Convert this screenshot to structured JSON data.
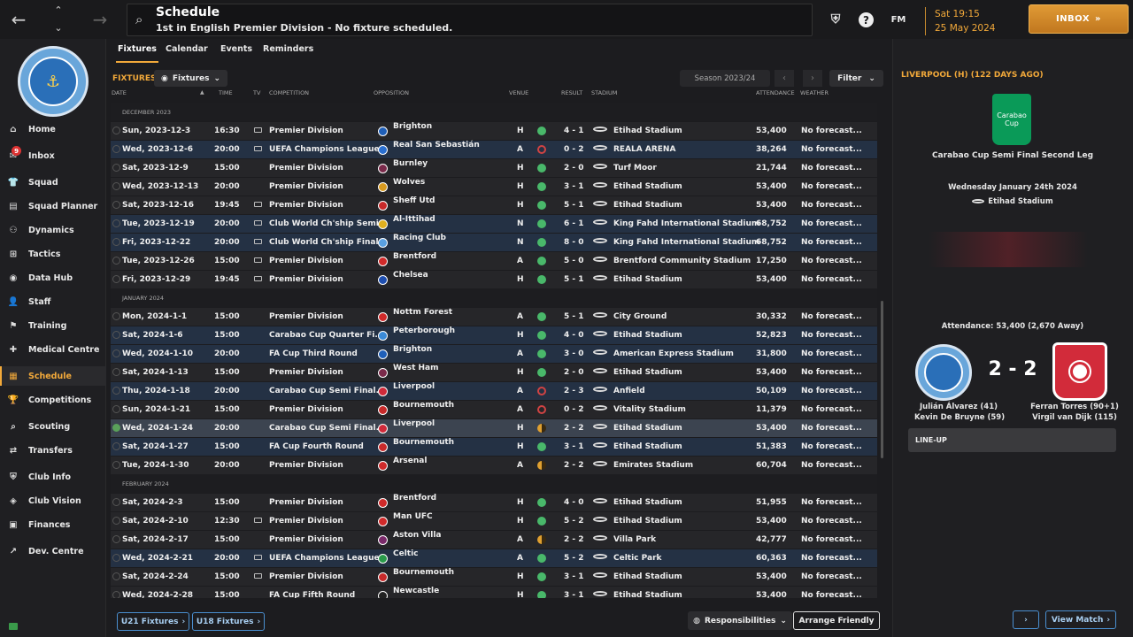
{
  "topbar": {
    "title": "Schedule",
    "subtitle": "1st in English Premier Division - No fixture scheduled.",
    "fm_label": "FM",
    "time": "Sat 19:15",
    "date": "25 May 2024",
    "inbox_label": "INBOX"
  },
  "sidebar": {
    "badge_count": "9",
    "items": [
      "Home",
      "Inbox",
      "Squad",
      "Squad Planner",
      "Dynamics",
      "Tactics",
      "Data Hub",
      "Staff",
      "Training",
      "Medical Centre",
      "Schedule",
      "Competitions",
      "Scouting",
      "Transfers",
      "Club Info",
      "Club Vision",
      "Finances",
      "Dev. Centre"
    ]
  },
  "tabs": [
    "Fixtures",
    "Calendar",
    "Events",
    "Reminders"
  ],
  "fixtures": {
    "label": "FIXTURES",
    "dropdown": "Fixtures",
    "season": "Season 2023/24",
    "filter": "Filter"
  },
  "columns": [
    "DATE",
    "TIME",
    "TV",
    "COMPETITION",
    "OPPOSITION",
    "VENUE",
    "RESULT",
    "STADIUM",
    "ATTENDANCE",
    "WEATHER"
  ],
  "sections": [
    "DECEMBER 2023",
    "JANUARY 2024",
    "FEBRUARY 2024"
  ],
  "rows": [
    {
      "date": "Sun, 2023-12-3",
      "time": "16:30",
      "tv": true,
      "comp": "Premier Division",
      "opp": "Brighton",
      "venue": "H",
      "res": "w",
      "score": "4 - 1",
      "stadium": "Etihad Stadium",
      "att": "53,400",
      "weather": "No forecast...",
      "alt": false,
      "color": "#1f5fb8"
    },
    {
      "date": "Wed, 2023-12-6",
      "time": "20:00",
      "tv": true,
      "comp": "UEFA Champions League",
      "opp": "Real San Sebastián",
      "venue": "A",
      "res": "l",
      "score": "0 - 2",
      "stadium": "REALA ARENA",
      "att": "38,264",
      "weather": "No forecast...",
      "alt": true,
      "color": "#2a6fd0"
    },
    {
      "date": "Sat, 2023-12-9",
      "time": "15:00",
      "tv": false,
      "comp": "Premier Division",
      "opp": "Burnley",
      "venue": "H",
      "res": "w",
      "score": "2 - 0",
      "stadium": "Turf Moor",
      "att": "21,744",
      "weather": "No forecast...",
      "alt": false,
      "color": "#7a2a4a"
    },
    {
      "date": "Wed, 2023-12-13",
      "time": "20:00",
      "tv": false,
      "comp": "Premier Division",
      "opp": "Wolves",
      "venue": "H",
      "res": "w",
      "score": "3 - 1",
      "stadium": "Etihad Stadium",
      "att": "53,400",
      "weather": "No forecast...",
      "alt": false,
      "color": "#d89a20"
    },
    {
      "date": "Sat, 2023-12-16",
      "time": "19:45",
      "tv": true,
      "comp": "Premier Division",
      "opp": "Sheff Utd",
      "venue": "H",
      "res": "w",
      "score": "5 - 1",
      "stadium": "Etihad Stadium",
      "att": "53,400",
      "weather": "No forecast...",
      "alt": false,
      "color": "#c82a2a"
    },
    {
      "date": "Tue, 2023-12-19",
      "time": "20:00",
      "tv": true,
      "comp": "Club World Ch'ship Semi",
      "opp": "Al-Ittihad",
      "venue": "N",
      "res": "w",
      "score": "6 - 1",
      "stadium": "King Fahd International Stadium",
      "att": "68,752",
      "weather": "No forecast...",
      "alt": true,
      "color": "#e0b020"
    },
    {
      "date": "Fri, 2023-12-22",
      "time": "20:00",
      "tv": true,
      "comp": "Club World Ch'ship Final",
      "opp": "Racing Club",
      "venue": "N",
      "res": "w",
      "score": "8 - 0",
      "stadium": "King Fahd International Stadium",
      "att": "68,752",
      "weather": "No forecast...",
      "alt": true,
      "color": "#5aa0e0"
    },
    {
      "date": "Tue, 2023-12-26",
      "time": "15:00",
      "tv": true,
      "comp": "Premier Division",
      "opp": "Brentford",
      "venue": "A",
      "res": "w",
      "score": "5 - 0",
      "stadium": "Brentford Community Stadium",
      "att": "17,250",
      "weather": "No forecast...",
      "alt": false,
      "color": "#d02a2a"
    },
    {
      "date": "Fri, 2023-12-29",
      "time": "19:45",
      "tv": true,
      "comp": "Premier Division",
      "opp": "Chelsea",
      "venue": "H",
      "res": "w",
      "score": "5 - 1",
      "stadium": "Etihad Stadium",
      "att": "53,400",
      "weather": "No forecast...",
      "alt": false,
      "color": "#1f4fb0"
    },
    {
      "date": "Mon, 2024-1-1",
      "time": "15:00",
      "tv": false,
      "comp": "Premier Division",
      "opp": "Nottm Forest",
      "venue": "A",
      "res": "w",
      "score": "5 - 1",
      "stadium": "City Ground",
      "att": "30,332",
      "weather": "No forecast...",
      "alt": false,
      "color": "#d02a2a"
    },
    {
      "date": "Sat, 2024-1-6",
      "time": "15:00",
      "tv": false,
      "comp": "Carabao Cup Quarter Fi...",
      "opp": "Peterborough",
      "venue": "H",
      "res": "w",
      "score": "4 - 0",
      "stadium": "Etihad Stadium",
      "att": "52,823",
      "weather": "No forecast...",
      "alt": true,
      "color": "#3a8ad8"
    },
    {
      "date": "Wed, 2024-1-10",
      "time": "20:00",
      "tv": false,
      "comp": "FA Cup Third Round",
      "opp": "Brighton",
      "venue": "A",
      "res": "w",
      "score": "3 - 0",
      "stadium": "American Express Stadium",
      "att": "31,800",
      "weather": "No forecast...",
      "alt": true,
      "color": "#1f5fb8"
    },
    {
      "date": "Sat, 2024-1-13",
      "time": "15:00",
      "tv": false,
      "comp": "Premier Division",
      "opp": "West Ham",
      "venue": "H",
      "res": "w",
      "score": "2 - 0",
      "stadium": "Etihad Stadium",
      "att": "53,400",
      "weather": "No forecast...",
      "alt": false,
      "color": "#7a2a4a"
    },
    {
      "date": "Thu, 2024-1-18",
      "time": "20:00",
      "tv": false,
      "comp": "Carabao Cup Semi Final...",
      "opp": "Liverpool",
      "venue": "A",
      "res": "l",
      "score": "2 - 3",
      "stadium": "Anfield",
      "att": "50,109",
      "weather": "No forecast...",
      "alt": true,
      "color": "#d02a3a"
    },
    {
      "date": "Sun, 2024-1-21",
      "time": "15:00",
      "tv": false,
      "comp": "Premier Division",
      "opp": "Bournemouth",
      "venue": "A",
      "res": "l",
      "score": "0 - 2",
      "stadium": "Vitality Stadium",
      "att": "11,379",
      "weather": "No forecast...",
      "alt": false,
      "color": "#c82a2a"
    },
    {
      "date": "Wed, 2024-1-24",
      "time": "20:00",
      "tv": false,
      "comp": "Carabao Cup Semi Final...",
      "opp": "Liverpool",
      "venue": "H",
      "res": "d",
      "score": "2 - 2",
      "stadium": "Etihad Stadium",
      "att": "53,400",
      "weather": "No forecast...",
      "alt": false,
      "sel": true,
      "color": "#d02a3a"
    },
    {
      "date": "Sat, 2024-1-27",
      "time": "15:00",
      "tv": false,
      "comp": "FA Cup Fourth Round",
      "opp": "Bournemouth",
      "venue": "H",
      "res": "w",
      "score": "3 - 1",
      "stadium": "Etihad Stadium",
      "att": "51,383",
      "weather": "No forecast...",
      "alt": true,
      "color": "#c82a2a"
    },
    {
      "date": "Tue, 2024-1-30",
      "time": "20:00",
      "tv": false,
      "comp": "Premier Division",
      "opp": "Arsenal",
      "venue": "A",
      "res": "d",
      "score": "2 - 2",
      "stadium": "Emirates Stadium",
      "att": "60,704",
      "weather": "No forecast...",
      "alt": false,
      "color": "#d02a2a"
    },
    {
      "date": "Sat, 2024-2-3",
      "time": "15:00",
      "tv": false,
      "comp": "Premier Division",
      "opp": "Brentford",
      "venue": "H",
      "res": "w",
      "score": "4 - 0",
      "stadium": "Etihad Stadium",
      "att": "51,955",
      "weather": "No forecast...",
      "alt": false,
      "color": "#d02a2a"
    },
    {
      "date": "Sat, 2024-2-10",
      "time": "12:30",
      "tv": true,
      "comp": "Premier Division",
      "opp": "Man UFC",
      "venue": "H",
      "res": "w",
      "score": "5 - 2",
      "stadium": "Etihad Stadium",
      "att": "53,400",
      "weather": "No forecast...",
      "alt": false,
      "color": "#d02a2a"
    },
    {
      "date": "Sat, 2024-2-17",
      "time": "15:00",
      "tv": false,
      "comp": "Premier Division",
      "opp": "Aston Villa",
      "venue": "A",
      "res": "d",
      "score": "2 - 2",
      "stadium": "Villa Park",
      "att": "42,777",
      "weather": "No forecast...",
      "alt": false,
      "color": "#7a2a6a"
    },
    {
      "date": "Wed, 2024-2-21",
      "time": "20:00",
      "tv": true,
      "comp": "UEFA Champions League",
      "opp": "Celtic",
      "venue": "A",
      "res": "w",
      "score": "5 - 2",
      "stadium": "Celtic Park",
      "att": "60,363",
      "weather": "No forecast...",
      "alt": true,
      "color": "#2a9a4a"
    },
    {
      "date": "Sat, 2024-2-24",
      "time": "15:00",
      "tv": true,
      "comp": "Premier Division",
      "opp": "Bournemouth",
      "venue": "H",
      "res": "w",
      "score": "3 - 1",
      "stadium": "Etihad Stadium",
      "att": "53,400",
      "weather": "No forecast...",
      "alt": false,
      "color": "#c82a2a"
    },
    {
      "date": "Wed, 2024-2-28",
      "time": "15:00",
      "tv": false,
      "comp": "FA Cup Fifth Round",
      "opp": "Newcastle",
      "venue": "H",
      "res": "w",
      "score": "3 - 1",
      "stadium": "Etihad Stadium",
      "att": "53,400",
      "weather": "No forecast...",
      "alt": false,
      "color": "#222"
    }
  ],
  "bottom": {
    "u21": "U21 Fixtures",
    "u18": "U18 Fixtures",
    "responsibilities": "Responsibilities",
    "arrange": "Arrange Friendly"
  },
  "match": {
    "header": "LIVERPOOL (H) (122 DAYS AGO)",
    "cup_badge": "Carabao Cup",
    "competition": "Carabao Cup Semi Final Second Leg",
    "date": "Wednesday January 24th 2024",
    "stadium": "Etihad Stadium",
    "attendance": "Attendance: 53,400 (2,670 Away)",
    "score": "2 - 2",
    "home_scorers": [
      "Julián Álvarez (41)",
      "Kevin De Bruyne (59)"
    ],
    "away_scorers": [
      "Ferran Torres (90+1)",
      "Virgil van Dijk (115)"
    ],
    "lineup": "LINE-UP",
    "view_match": "View Match"
  }
}
